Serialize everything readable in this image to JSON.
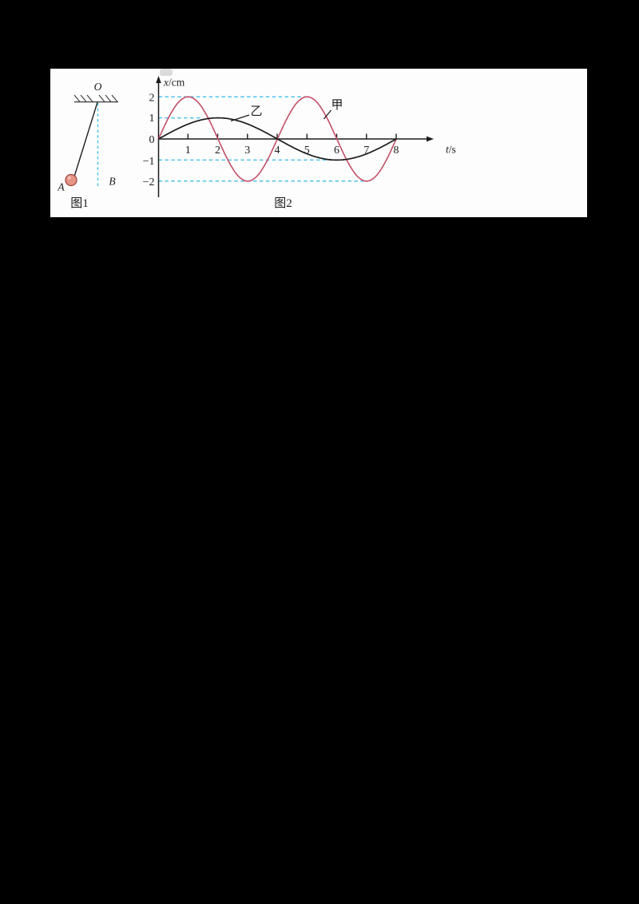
{
  "figure1": {
    "caption": "图1",
    "labels": {
      "pivot": "O",
      "bob": "A",
      "vertical_ref": "B"
    }
  },
  "figure2": {
    "caption": "图2",
    "axis": {
      "y_symbol": "x",
      "y_unit": "/cm",
      "x_symbol": "t",
      "x_unit": "/s"
    },
    "x_ticks": [
      "1",
      "2",
      "3",
      "4",
      "5",
      "6",
      "7",
      "8"
    ],
    "y_ticks": [
      "2",
      "1",
      "0",
      "−1",
      "−2"
    ],
    "series_labels": {
      "jia": "甲",
      "yi": "乙"
    }
  },
  "chart_data": {
    "type": "line",
    "title": "图2",
    "xlabel": "t/s",
    "ylabel": "x/cm",
    "xlim": [
      0,
      8.6
    ],
    "ylim": [
      -2.6,
      2.9
    ],
    "x_tick_values": [
      1,
      2,
      3,
      4,
      5,
      6,
      7,
      8
    ],
    "y_tick_values": [
      2,
      1,
      0,
      -1,
      -2
    ],
    "legend_position": "inline-labels",
    "series": [
      {
        "id": "jia",
        "name": "甲",
        "color": "#c34f68",
        "waveform": "sine",
        "amplitude_cm": 2,
        "period_s": 4,
        "t_range": [
          0,
          8
        ],
        "keypoints": [
          [
            0,
            0
          ],
          [
            1,
            2
          ],
          [
            2,
            0
          ],
          [
            3,
            -2
          ],
          [
            4,
            0
          ],
          [
            5,
            2
          ],
          [
            6,
            0
          ],
          [
            7,
            -2
          ],
          [
            8,
            0
          ]
        ]
      },
      {
        "id": "yi",
        "name": "乙",
        "color": "#1c1c1c",
        "waveform": "sine",
        "amplitude_cm": 1,
        "period_s": 8,
        "t_range": [
          0,
          8
        ],
        "keypoints": [
          [
            0,
            0
          ],
          [
            2,
            1
          ],
          [
            4,
            0
          ],
          [
            6,
            -1
          ],
          [
            8,
            0
          ]
        ]
      }
    ],
    "gridlines": {
      "style": "dashed",
      "color": "#4fc4e8",
      "lines": [
        {
          "y": 2,
          "t_start": 0,
          "t_end": 4.97
        },
        {
          "y": 1,
          "t_start": 0,
          "t_end": 1.48
        },
        {
          "y": -1,
          "t_start": 0,
          "t_end": 5.83
        },
        {
          "y": -2,
          "t_start": 0,
          "t_end": 7.0
        }
      ]
    }
  },
  "colors": {
    "page_bg": "#000000",
    "panel_bg": "#fdfdfd",
    "curve_jia": "#c34f68",
    "curve_yi": "#1c1c1c",
    "dashed_guide": "#4fc4e8",
    "bob_fill": "#e69486",
    "bob_stroke": "#9f4b41",
    "axis": "#1c1c1c"
  }
}
